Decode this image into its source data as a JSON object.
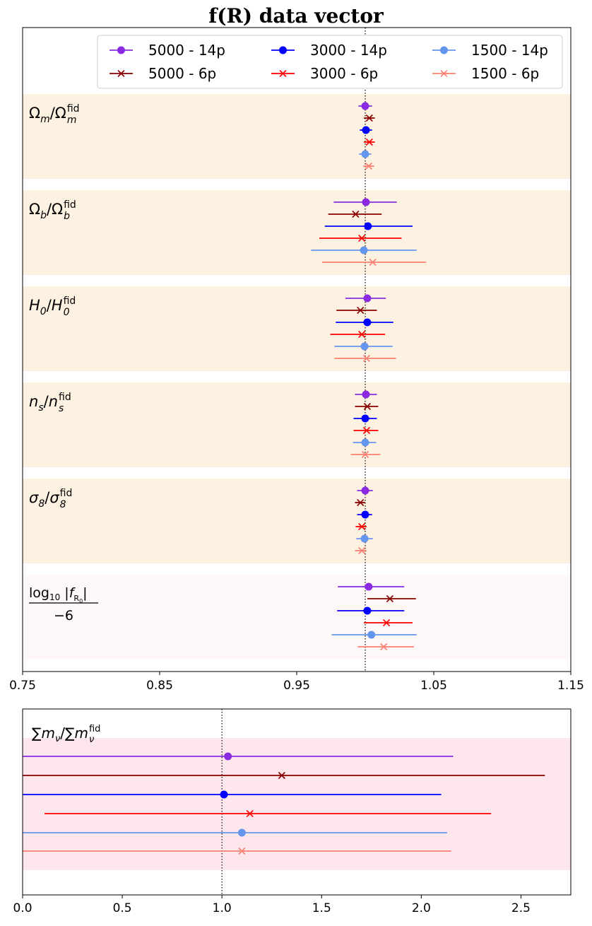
{
  "chart_data": [
    {
      "type": "errorbar",
      "title": "f(R) data vector",
      "xlabel": "",
      "ylabel": "",
      "xlim": [
        0.75,
        1.15
      ],
      "xticks": [
        "0.75",
        "0.85",
        "0.95",
        "1.05",
        "1.15"
      ],
      "xtick_values": [
        0.75,
        0.85,
        0.95,
        1.05,
        1.15
      ],
      "reference_line": 1.0,
      "legend": [
        {
          "name": "5000 - 14p",
          "color": "#8a2be2",
          "marker": "o"
        },
        {
          "name": "3000 - 14p",
          "color": "#0000ff",
          "marker": "o"
        },
        {
          "name": "1500 - 14p",
          "color": "#6495ed",
          "marker": "o"
        },
        {
          "name": "5000 - 6p",
          "color": "#8b0000",
          "marker": "x"
        },
        {
          "name": "3000 - 6p",
          "color": "#ff0000",
          "marker": "x"
        },
        {
          "name": "1500 - 6p",
          "color": "#fa8072",
          "marker": "x"
        }
      ],
      "series_order": [
        "5000 - 14p",
        "5000 - 6p",
        "3000 - 14p",
        "3000 - 6p",
        "1500 - 14p",
        "1500 - 6p"
      ],
      "groups": [
        {
          "label": "Ωm/Ωm fid",
          "label_main": "Ω",
          "label_sub": "m",
          "label_sub2": "m",
          "band_color": "#fdf2e2",
          "points": [
            {
              "value": 1.0,
              "low": 0.995,
              "high": 1.005
            },
            {
              "value": 1.003,
              "low": 0.999,
              "high": 1.007
            },
            {
              "value": 1.0005,
              "low": 0.996,
              "high": 1.005
            },
            {
              "value": 1.003,
              "low": 0.999,
              "high": 1.007
            },
            {
              "value": 1.0,
              "low": 0.9955,
              "high": 1.0045
            },
            {
              "value": 1.0025,
              "low": 0.9985,
              "high": 1.0065
            }
          ]
        },
        {
          "label": "Ωb/Ωb fid",
          "label_main": "Ω",
          "label_sub": "b",
          "label_sub2": "b",
          "band_color": "#fdf2e2",
          "points": [
            {
              "value": 1.0005,
              "low": 0.977,
              "high": 1.023
            },
            {
              "value": 0.993,
              "low": 0.973,
              "high": 1.012
            },
            {
              "value": 1.002,
              "low": 0.9705,
              "high": 1.0345
            },
            {
              "value": 0.9975,
              "low": 0.9665,
              "high": 1.0265
            },
            {
              "value": 0.999,
              "low": 0.9605,
              "high": 1.0375
            },
            {
              "value": 1.0055,
              "low": 0.9685,
              "high": 1.0445
            }
          ]
        },
        {
          "label": "H0/H0 fid",
          "label_main": "H",
          "label_sub": "0",
          "label_sub2": "0",
          "band_color": "#fdf2e2",
          "points": [
            {
              "value": 1.0015,
              "low": 0.9855,
              "high": 1.015
            },
            {
              "value": 0.9965,
              "low": 0.979,
              "high": 1.0085
            },
            {
              "value": 1.0015,
              "low": 0.9785,
              "high": 1.0205
            },
            {
              "value": 0.9975,
              "low": 0.9745,
              "high": 1.0145
            },
            {
              "value": 0.9995,
              "low": 0.9775,
              "high": 1.02
            },
            {
              "value": 1.001,
              "low": 0.9775,
              "high": 1.0225
            }
          ]
        },
        {
          "label": "ns/ns fid",
          "label_main": "n",
          "label_sub": "s",
          "label_sub2": "s",
          "band_color": "#fdf2e2",
          "points": [
            {
              "value": 1.0005,
              "low": 0.9925,
              "high": 1.0085
            },
            {
              "value": 1.0015,
              "low": 0.9925,
              "high": 1.0095
            },
            {
              "value": 1.0,
              "low": 0.9915,
              "high": 1.0085
            },
            {
              "value": 1.001,
              "low": 0.9915,
              "high": 1.0095
            },
            {
              "value": 1.0,
              "low": 0.991,
              "high": 1.008
            },
            {
              "value": 1.0,
              "low": 0.9895,
              "high": 1.011
            }
          ]
        },
        {
          "label": "σ8/σ8 fid",
          "label_main": "σ",
          "label_sub": "8",
          "label_sub2": "8",
          "band_color": "#fdf2e2",
          "points": [
            {
              "value": 1.0,
              "low": 0.994,
              "high": 1.0055
            },
            {
              "value": 0.9965,
              "low": 0.9925,
              "high": 1.0
            },
            {
              "value": 1.0,
              "low": 0.994,
              "high": 1.005
            },
            {
              "value": 0.9975,
              "low": 0.993,
              "high": 1.001
            },
            {
              "value": 0.9995,
              "low": 0.9935,
              "high": 1.0055
            },
            {
              "value": 0.9975,
              "low": 0.9925,
              "high": 1.001
            }
          ]
        },
        {
          "label": "log10|fR0| / −6",
          "label_main": "log10",
          "label_sub": "R0",
          "label_sub2": "",
          "denominator": "−6",
          "band_color": "#fef7f7",
          "points": [
            {
              "value": 1.0025,
              "low": 0.98,
              "high": 1.0285
            },
            {
              "value": 1.018,
              "low": 1.0015,
              "high": 1.037
            },
            {
              "value": 1.0015,
              "low": 0.9795,
              "high": 1.0285
            },
            {
              "value": 1.0155,
              "low": 0.999,
              "high": 1.0345
            },
            {
              "value": 1.0045,
              "low": 0.9755,
              "high": 1.0375
            },
            {
              "value": 1.0135,
              "low": 0.9945,
              "high": 1.0355
            }
          ]
        }
      ]
    },
    {
      "type": "errorbar",
      "title": "",
      "label": "∑mν/∑mν fid",
      "label_main": "∑m",
      "label_sub": "ν",
      "band_color": "#fde6ec",
      "xlim": [
        0.0,
        2.75
      ],
      "xticks": [
        "0.0",
        "0.5",
        "1.0",
        "1.5",
        "2.0",
        "2.5"
      ],
      "xtick_values": [
        0.0,
        0.5,
        1.0,
        1.5,
        2.0,
        2.5
      ],
      "reference_line": 1.0,
      "points": [
        {
          "series": "5000 - 14p",
          "value": 1.03,
          "low": -0.1,
          "high": 2.16
        },
        {
          "series": "5000 - 6p",
          "value": 1.3,
          "low": -0.1,
          "high": 2.62
        },
        {
          "series": "3000 - 14p",
          "value": 1.01,
          "low": -0.1,
          "high": 2.1
        },
        {
          "series": "3000 - 6p",
          "value": 1.14,
          "low": 0.11,
          "high": 2.35
        },
        {
          "series": "1500 - 14p",
          "value": 1.1,
          "low": -0.1,
          "high": 2.13
        },
        {
          "series": "1500 - 6p",
          "value": 1.1,
          "low": -0.1,
          "high": 2.15
        }
      ]
    }
  ]
}
